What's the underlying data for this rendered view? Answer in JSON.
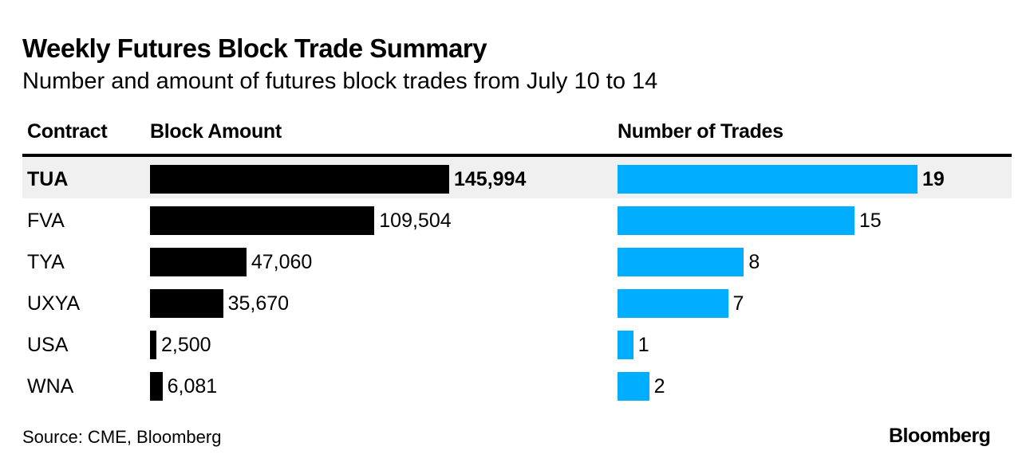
{
  "title": "Weekly Futures Block Trade Summary",
  "subtitle": "Number and amount of futures block trades from July 10 to 14",
  "source": "Source: CME, Bloomberg",
  "logo": "Bloomberg",
  "colors": {
    "amount_bar": "#000000",
    "trades_bar": "#00adff",
    "highlight": "#f0f0f0"
  },
  "chart_data": {
    "type": "table",
    "title": "Weekly Futures Block Trade Summary",
    "columns": [
      "Contract",
      "Block Amount",
      "Number of Trades"
    ],
    "highlighted": "TUA",
    "rows": [
      {
        "contract": "TUA",
        "amount": 145994,
        "amount_label": "145,994",
        "trades": 19,
        "trades_label": "19"
      },
      {
        "contract": "FVA",
        "amount": 109504,
        "amount_label": "109,504",
        "trades": 15,
        "trades_label": "15"
      },
      {
        "contract": "TYA",
        "amount": 47060,
        "amount_label": "47,060",
        "trades": 8,
        "trades_label": "8"
      },
      {
        "contract": "UXYA",
        "amount": 35670,
        "amount_label": "35,670",
        "trades": 7,
        "trades_label": "7"
      },
      {
        "contract": "USA",
        "amount": 2500,
        "amount_label": "2,500",
        "trades": 1,
        "trades_label": "1"
      },
      {
        "contract": "WNA",
        "amount": 6081,
        "amount_label": "6,081",
        "trades": 2,
        "trades_label": "2"
      }
    ]
  }
}
